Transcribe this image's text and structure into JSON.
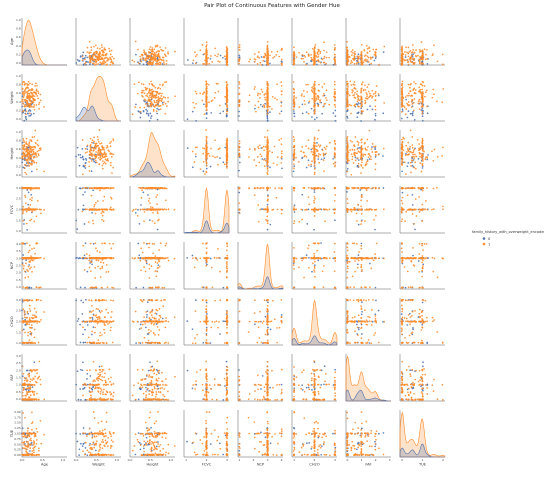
{
  "chart_data": {
    "type": "scatter",
    "title": "Pair Plot of Continuous Features with Gender Hue",
    "variables": [
      "Age",
      "Weight",
      "Height",
      "FCVC",
      "NCP",
      "CH2O",
      "FAF",
      "TUE"
    ],
    "ranges": {
      "Age": [
        0.0,
        1.1
      ],
      "Weight": [
        0.0,
        1.1
      ],
      "Height": [
        0.0,
        1.1
      ],
      "FCVC": [
        0.9,
        3.1
      ],
      "NCP": [
        0.9,
        4.1
      ],
      "CH2O": [
        0.9,
        3.1
      ],
      "FAF": [
        -0.1,
        3.1
      ],
      "TUE": [
        -0.1,
        2.1
      ]
    },
    "ticks": {
      "Age": [
        0.0,
        0.5,
        1.0
      ],
      "Weight": [
        0.0,
        0.5,
        1.0
      ],
      "Height": [
        0.0,
        0.5,
        1.0
      ],
      "FCVC": [
        1,
        2,
        3
      ],
      "NCP": [
        1,
        2,
        3,
        4
      ],
      "CH2O": [
        1,
        2,
        3
      ],
      "FAF": [
        0,
        1,
        2,
        3
      ],
      "TUE": [
        0,
        1,
        2
      ]
    },
    "y_tick_labels": {
      "Age": [
        "0.0",
        "0.2",
        "0.4",
        "0.6",
        "0.8",
        "1.0"
      ],
      "Weight": [
        "0.0",
        "0.2",
        "0.4",
        "0.6",
        "0.8",
        "1.0"
      ],
      "Height": [
        "0.0",
        "0.2",
        "0.4",
        "0.6",
        "0.8",
        "1.0"
      ],
      "FCVC": [
        "1.0",
        "1.5",
        "2.0",
        "2.5",
        "3.0"
      ],
      "NCP": [
        "1.0",
        "1.5",
        "2.0",
        "2.5",
        "3.0",
        "3.5",
        "4.0"
      ],
      "CH2O": [
        "1.0",
        "1.5",
        "2.0",
        "2.5",
        "3.0"
      ],
      "FAF": [
        "0.0",
        "0.5",
        "1.0",
        "1.5",
        "2.0",
        "2.5",
        "3.0"
      ],
      "TUE": [
        "0.00",
        "0.25",
        "0.50",
        "0.75",
        "1.00",
        "1.25",
        "1.50",
        "1.75",
        "2.00"
      ]
    },
    "hue": {
      "title": "family_history_with_overweight_encoded",
      "levels": [
        {
          "label": "0",
          "color": "#4c72b0"
        },
        {
          "label": "1",
          "color": "#ff8c2a"
        }
      ]
    },
    "grid": false,
    "legend_placement": "right"
  }
}
